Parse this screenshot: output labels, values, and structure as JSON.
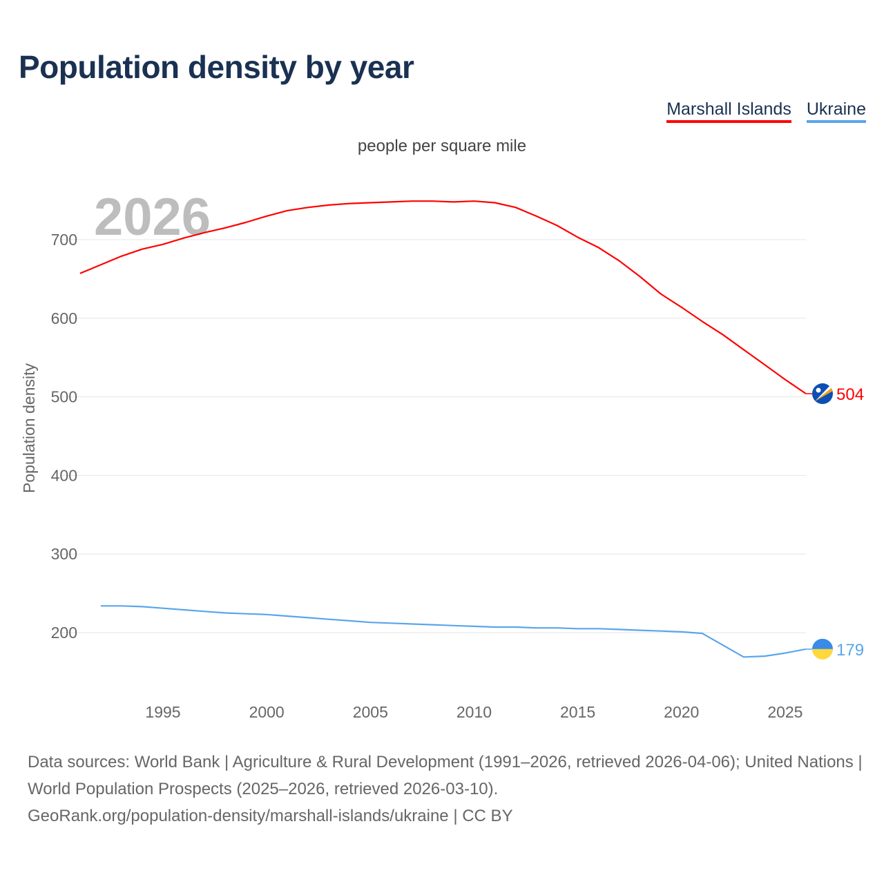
{
  "title": "Population density by year",
  "unit_label": "people per square mile",
  "year_watermark": "2026",
  "footer": {
    "line1": "Data sources: World Bank | Agriculture & Rural Development (1991–2026, retrieved 2026-04-06); United Nations | World Population Prospects (2025–2026, retrieved 2026-03-10).",
    "line2": "GeoRank.org/population-density/marshall-islands/ukraine | CC BY"
  },
  "chart_data": {
    "type": "line",
    "title": "Population density by year",
    "xlabel": "",
    "ylabel": "Population density",
    "xlim": [
      1991,
      2026
    ],
    "ylim": [
      120,
      770
    ],
    "x_ticks": [
      1995,
      2000,
      2005,
      2010,
      2015,
      2020,
      2025
    ],
    "y_ticks": [
      200,
      300,
      400,
      500,
      600,
      700
    ],
    "grid": true,
    "legend_position": "top-right",
    "series": [
      {
        "name": "Marshall Islands",
        "color": "#ff0000",
        "end_label": "504",
        "flag": "marshall-islands-flag",
        "x": [
          1991,
          1992,
          1993,
          1994,
          1995,
          1996,
          1997,
          1998,
          1999,
          2000,
          2001,
          2002,
          2003,
          2004,
          2005,
          2006,
          2007,
          2008,
          2009,
          2010,
          2011,
          2012,
          2013,
          2014,
          2015,
          2016,
          2017,
          2018,
          2019,
          2020,
          2021,
          2022,
          2023,
          2024,
          2025,
          2026
        ],
        "values": [
          657,
          668,
          679,
          688,
          694,
          702,
          709,
          715,
          722,
          730,
          737,
          741,
          744,
          746,
          747,
          748,
          749,
          749,
          748,
          749,
          747,
          741,
          730,
          718,
          703,
          690,
          673,
          653,
          631,
          614,
          596,
          579,
          560,
          541,
          522,
          504
        ]
      },
      {
        "name": "Ukraine",
        "color": "#5aa5ec",
        "end_label": "179",
        "flag": "ukraine-flag",
        "x": [
          1992,
          1993,
          1994,
          1995,
          1996,
          1997,
          1998,
          1999,
          2000,
          2001,
          2002,
          2003,
          2004,
          2005,
          2006,
          2007,
          2008,
          2009,
          2010,
          2011,
          2012,
          2013,
          2014,
          2015,
          2016,
          2017,
          2018,
          2019,
          2020,
          2021,
          2022,
          2023,
          2024,
          2025,
          2026
        ],
        "values": [
          234,
          234,
          233,
          231,
          229,
          227,
          225,
          224,
          223,
          221,
          219,
          217,
          215,
          213,
          212,
          211,
          210,
          209,
          208,
          207,
          207,
          206,
          206,
          205,
          205,
          204,
          203,
          202,
          201,
          199,
          184,
          169,
          170,
          174,
          179
        ]
      }
    ]
  }
}
